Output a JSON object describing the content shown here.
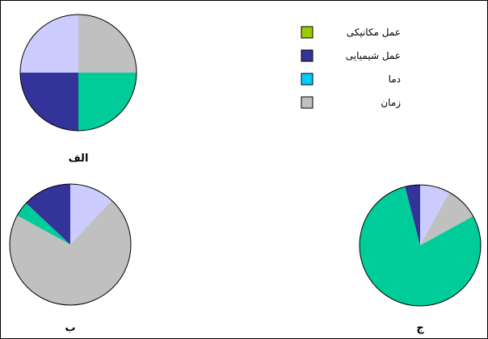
{
  "chart_data": [
    {
      "type": "pie",
      "label": "الف",
      "slices": [
        {
          "series": "زمان",
          "value": 25
        },
        {
          "series": "عمل مکانیکی",
          "value": 0
        },
        {
          "series": "دما",
          "value": 25
        },
        {
          "series": "عمل شیمیایی",
          "value": 25
        },
        {
          "series": "lavender",
          "value": 25
        }
      ]
    },
    {
      "type": "pie",
      "label": "ب",
      "slices": [
        {
          "series": "lavender",
          "value": 12
        },
        {
          "series": "زمان",
          "value": 71
        },
        {
          "series": "دما",
          "value": 4
        },
        {
          "series": "عمل شیمیایی",
          "value": 13
        }
      ]
    },
    {
      "type": "pie",
      "label": "ج",
      "slices": [
        {
          "series": "lavender",
          "value": 8
        },
        {
          "series": "زمان",
          "value": 9
        },
        {
          "series": "دما",
          "value": 79
        },
        {
          "series": "عمل شیمیایی",
          "value": 4
        }
      ]
    }
  ],
  "legend": [
    {
      "label": "عمل مکانیکی",
      "color": "#99CC00"
    },
    {
      "label": "عمل شیمیایی",
      "color": "#333399"
    },
    {
      "label": "دما",
      "color": "#00CCFF"
    },
    {
      "label": "زمان",
      "color": "#C0C0C0"
    }
  ],
  "colors": {
    "lavender": "#CCCCFF",
    "زمان": "#C0C0C0",
    "دما": "#00CC99",
    "عمل شیمیایی": "#333399",
    "عمل مکانیکی": "#99CC00"
  }
}
